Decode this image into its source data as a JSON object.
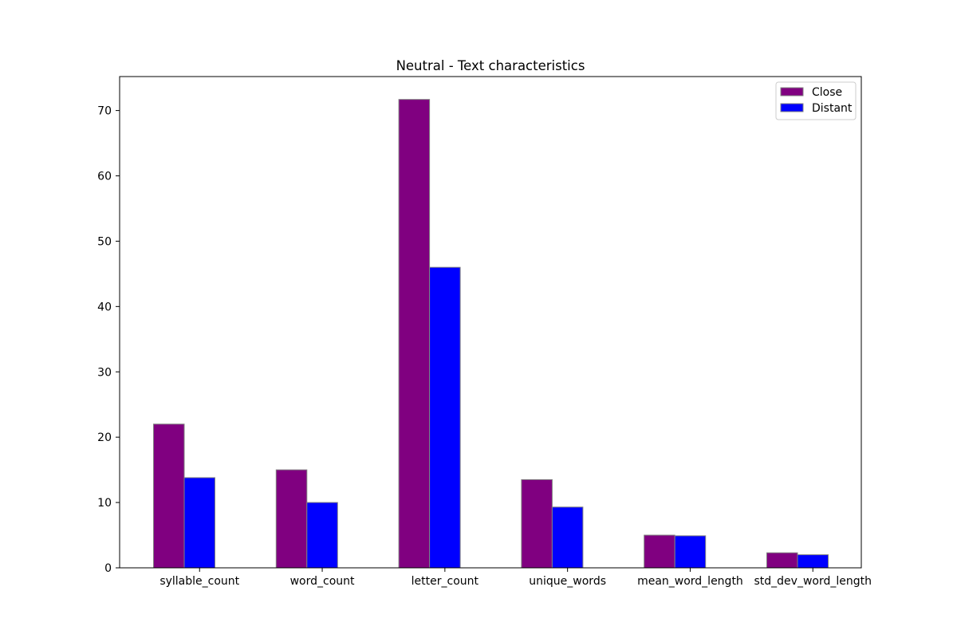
{
  "chart_data": {
    "type": "bar",
    "title": "Neutral - Text characteristics",
    "xlabel": "",
    "ylabel": "",
    "categories": [
      "syllable_count",
      "word_count",
      "letter_count",
      "unique_words",
      "mean_word_length",
      "std_dev_word_length"
    ],
    "series": [
      {
        "name": "Close",
        "color": "#800080",
        "values": [
          22.0,
          15.0,
          71.7,
          13.5,
          5.0,
          2.3
        ]
      },
      {
        "name": "Distant",
        "color": "#0000ff",
        "values": [
          13.8,
          10.0,
          46.0,
          9.3,
          4.9,
          2.0
        ]
      }
    ],
    "ylim": [
      0,
      75.2
    ],
    "yticks": [
      0,
      10,
      20,
      30,
      40,
      50,
      60,
      70
    ],
    "edge_color": "#808080",
    "grid": false,
    "legend_position": "upper right"
  }
}
